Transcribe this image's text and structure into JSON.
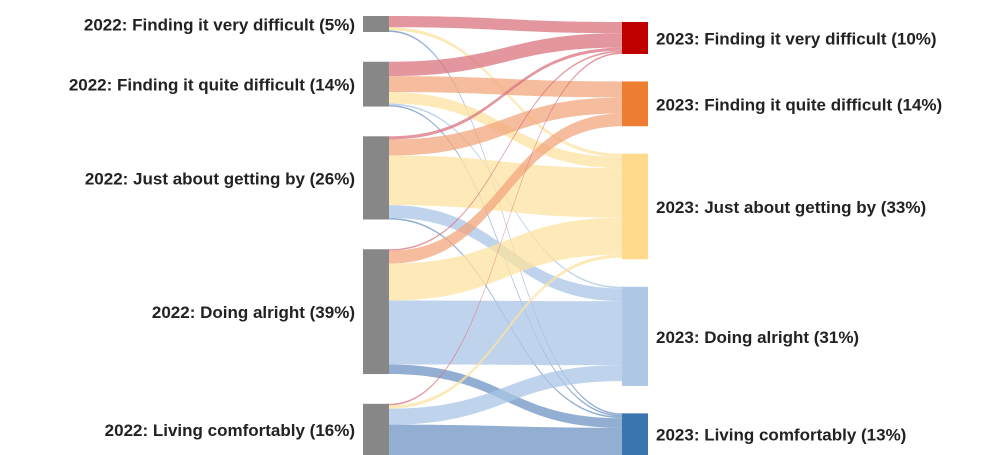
{
  "chart_data": {
    "type": "sankey",
    "nodes": [
      {
        "label": "2022: Finding it very difficult (5%)",
        "value": 5,
        "color": "#878787",
        "side": "left"
      },
      {
        "label": "2022: Finding it quite difficult (14%)",
        "value": 14,
        "color": "#878787",
        "side": "left"
      },
      {
        "label": "2022: Just about getting by (26%)",
        "value": 26,
        "color": "#878787",
        "side": "left"
      },
      {
        "label": "2022: Doing alright (39%)",
        "value": 39,
        "color": "#878787",
        "side": "left"
      },
      {
        "label": "2022: Living comfortably (16%)",
        "value": 16,
        "color": "#878787",
        "side": "left"
      },
      {
        "label": "2023: Finding it very difficult (10%)",
        "value": 10,
        "color": "#c00000",
        "side": "right"
      },
      {
        "label": "2023: Finding it quite difficult (14%)",
        "value": 14,
        "color": "#ed7d31",
        "side": "right"
      },
      {
        "label": "2023: Just about getting by (33%)",
        "value": 33,
        "color": "#ffd98c",
        "side": "right"
      },
      {
        "label": "2023: Doing alright (31%)",
        "value": 31,
        "color": "#aec8e6",
        "side": "right"
      },
      {
        "label": "2023: Living comfortably (13%)",
        "value": 13,
        "color": "#3a76ae",
        "side": "right"
      }
    ],
    "links": [
      {
        "source": 0,
        "target": 5,
        "value": 3.5,
        "color": "#d9737d"
      },
      {
        "source": 0,
        "target": 7,
        "value": 1,
        "color": "#fde3a0"
      },
      {
        "source": 0,
        "target": 9,
        "value": 0.5,
        "color": "#6f93c4"
      },
      {
        "source": 1,
        "target": 5,
        "value": 4.5,
        "color": "#d9737d"
      },
      {
        "source": 1,
        "target": 6,
        "value": 5,
        "color": "#f2a57c"
      },
      {
        "source": 1,
        "target": 7,
        "value": 3.5,
        "color": "#fde3a0"
      },
      {
        "source": 1,
        "target": 8,
        "value": 0.5,
        "color": "#a9c5e6"
      },
      {
        "source": 1,
        "target": 9,
        "value": 0.5,
        "color": "#6f93c4"
      },
      {
        "source": 2,
        "target": 5,
        "value": 1,
        "color": "#d9737d"
      },
      {
        "source": 2,
        "target": 6,
        "value": 5,
        "color": "#f2a57c"
      },
      {
        "source": 2,
        "target": 7,
        "value": 15.5,
        "color": "#fde3a0"
      },
      {
        "source": 2,
        "target": 8,
        "value": 4,
        "color": "#a9c5e6"
      },
      {
        "source": 2,
        "target": 9,
        "value": 0.5,
        "color": "#6f93c4"
      },
      {
        "source": 3,
        "target": 5,
        "value": 0.5,
        "color": "#d9737d"
      },
      {
        "source": 3,
        "target": 6,
        "value": 4,
        "color": "#f2a57c"
      },
      {
        "source": 3,
        "target": 7,
        "value": 11.5,
        "color": "#fde3a0"
      },
      {
        "source": 3,
        "target": 8,
        "value": 20,
        "color": "#a9c5e6"
      },
      {
        "source": 3,
        "target": 9,
        "value": 3,
        "color": "#6f93c4"
      },
      {
        "source": 4,
        "target": 5,
        "value": 0.5,
        "color": "#d9737d"
      },
      {
        "source": 4,
        "target": 7,
        "value": 1,
        "color": "#fde3a0"
      },
      {
        "source": 4,
        "target": 8,
        "value": 5,
        "color": "#a9c5e6"
      },
      {
        "source": 4,
        "target": 9,
        "value": 9.5,
        "color": "#6f93c4"
      }
    ]
  }
}
